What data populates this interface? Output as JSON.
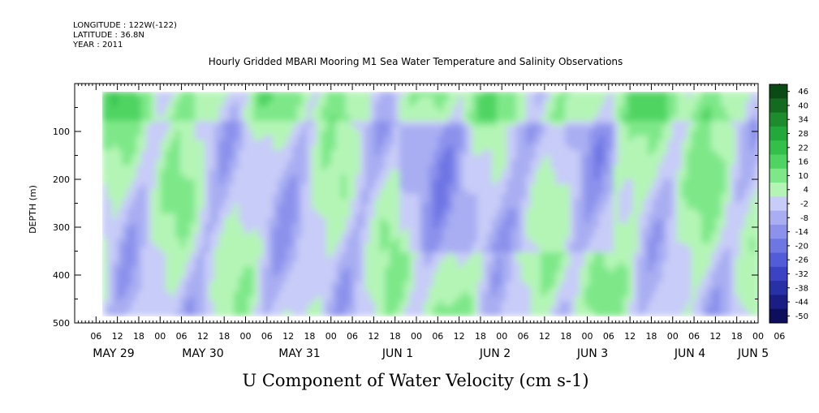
{
  "header": {
    "longitude": "LONGITUDE : 122W(-122)",
    "latitude": "LATITUDE : 36.8N",
    "year": "YEAR : 2011"
  },
  "chart_data": {
    "type": "heatmap",
    "title": "Hourly Gridded MBARI Mooring M1 Sea Water Temperature and Salinity Observations",
    "xlabel": "U Component of Water Velocity (cm s-1)",
    "ylabel": "DEPTH (m)",
    "y_range": [
      0,
      500
    ],
    "y_reversed": true,
    "y_ticks": [
      100,
      200,
      300,
      400,
      500
    ],
    "x_range_hours": [
      0,
      192
    ],
    "hour_ticks": [
      "06",
      "12",
      "18",
      "00",
      "06",
      "12",
      "18",
      "00",
      "06",
      "12",
      "18",
      "00",
      "06",
      "12",
      "18",
      "00",
      "06",
      "12",
      "18",
      "00",
      "06",
      "12",
      "18",
      "00",
      "06",
      "12",
      "18",
      "00",
      "06",
      "12",
      "18",
      "00",
      "06"
    ],
    "date_labels": [
      "MAY 29",
      "MAY 30",
      "MAY 31",
      "JUN  1",
      "JUN  2",
      "JUN  3",
      "JUN  4",
      "JUN  5"
    ],
    "colorbar": {
      "levels": [
        "46",
        "40",
        "34",
        "28",
        "22",
        "16",
        "10",
        "4",
        "-2",
        "-8",
        "-14",
        "-20",
        "-26",
        "-32",
        "-38",
        "-44",
        "-50"
      ],
      "colors": [
        "#0a4a14",
        "#136b20",
        "#1c8c2c",
        "#23a83a",
        "#33c048",
        "#4fd462",
        "#7ee889",
        "#b4f5b6",
        "#c8ccf8",
        "#a9aef2",
        "#8c92ec",
        "#6e76e4",
        "#535cd8",
        "#3b43c4",
        "#2830a6",
        "#1a1e84",
        "#0d0f5c"
      ]
    }
  }
}
